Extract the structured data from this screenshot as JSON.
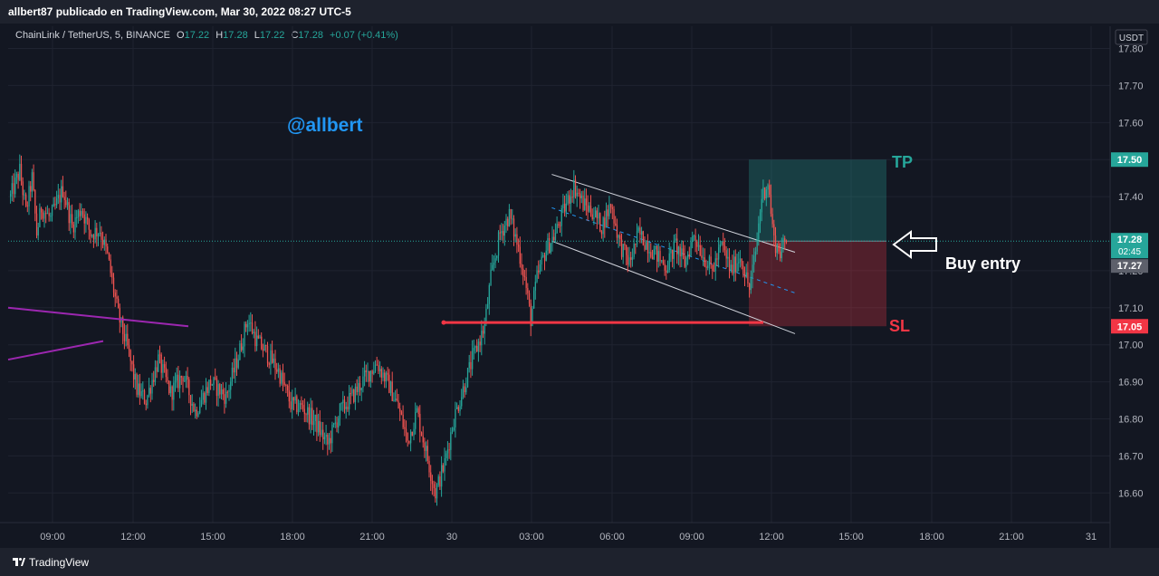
{
  "header": {
    "attribution": "allbert87 publicado en TradingView.com, Mar 30, 2022 08:27 UTC-5"
  },
  "legend": {
    "symbol": "ChainLink / TetherUS, 5, BINANCE",
    "open_label": "O",
    "open": "17.22",
    "high_label": "H",
    "high": "17.28",
    "low_label": "L",
    "low": "17.22",
    "close_label": "C",
    "close": "17.28",
    "change": "+0.07 (+0.41%)"
  },
  "footer": {
    "brand": "TradingView"
  },
  "colors": {
    "up": "#26a69a",
    "down": "#ef5350",
    "background": "#131722",
    "accent_blue": "#2196f3",
    "tp_green": "#26a69a",
    "sl_red": "#f23645"
  },
  "chart_data": {
    "type": "candlestick",
    "currency": "USDT",
    "ylim": [
      16.52,
      17.86
    ],
    "y_ticks": [
      "17.80",
      "17.70",
      "17.60",
      "17.50",
      "17.40",
      "17.20",
      "17.10",
      "17.00",
      "16.90",
      "16.80",
      "16.70",
      "16.60"
    ],
    "x_ticks": [
      "09:00",
      "12:00",
      "15:00",
      "18:00",
      "21:00",
      "30",
      "03:00",
      "06:00",
      "09:00",
      "12:00",
      "15:00",
      "18:00",
      "21:00",
      "31"
    ],
    "price_path": [
      [
        0,
        17.4
      ],
      [
        6,
        17.47
      ],
      [
        10,
        17.36
      ],
      [
        14,
        17.45
      ],
      [
        17,
        17.3
      ],
      [
        20,
        17.37
      ],
      [
        26,
        17.34
      ],
      [
        34,
        17.42
      ],
      [
        40,
        17.32
      ],
      [
        46,
        17.37
      ],
      [
        52,
        17.3
      ],
      [
        58,
        17.31
      ],
      [
        63,
        17.24
      ],
      [
        70,
        17.08
      ],
      [
        76,
        16.99
      ],
      [
        82,
        16.88
      ],
      [
        88,
        16.85
      ],
      [
        96,
        16.96
      ],
      [
        104,
        16.87
      ],
      [
        112,
        16.92
      ],
      [
        120,
        16.82
      ],
      [
        130,
        16.9
      ],
      [
        140,
        16.86
      ],
      [
        148,
        16.97
      ],
      [
        154,
        17.07
      ],
      [
        160,
        17.01
      ],
      [
        166,
        16.98
      ],
      [
        174,
        16.93
      ],
      [
        182,
        16.84
      ],
      [
        190,
        16.83
      ],
      [
        198,
        16.79
      ],
      [
        206,
        16.73
      ],
      [
        214,
        16.82
      ],
      [
        222,
        16.86
      ],
      [
        230,
        16.91
      ],
      [
        238,
        16.95
      ],
      [
        246,
        16.89
      ],
      [
        252,
        16.83
      ],
      [
        258,
        16.74
      ],
      [
        264,
        16.82
      ],
      [
        270,
        16.71
      ],
      [
        276,
        16.6
      ],
      [
        282,
        16.68
      ],
      [
        288,
        16.8
      ],
      [
        294,
        16.88
      ],
      [
        300,
        16.96
      ],
      [
        308,
        17.05
      ],
      [
        312,
        17.18
      ],
      [
        318,
        17.3
      ],
      [
        324,
        17.35
      ],
      [
        330,
        17.26
      ],
      [
        334,
        17.18
      ],
      [
        338,
        17.07
      ],
      [
        342,
        17.18
      ],
      [
        348,
        17.26
      ],
      [
        354,
        17.3
      ],
      [
        360,
        17.37
      ],
      [
        366,
        17.43
      ],
      [
        372,
        17.38
      ],
      [
        378,
        17.36
      ],
      [
        384,
        17.32
      ],
      [
        390,
        17.38
      ],
      [
        396,
        17.27
      ],
      [
        402,
        17.22
      ],
      [
        408,
        17.3
      ],
      [
        414,
        17.27
      ],
      [
        420,
        17.24
      ],
      [
        426,
        17.21
      ],
      [
        432,
        17.27
      ],
      [
        438,
        17.22
      ],
      [
        444,
        17.3
      ],
      [
        450,
        17.24
      ],
      [
        456,
        17.2
      ],
      [
        462,
        17.27
      ],
      [
        468,
        17.2
      ],
      [
        474,
        17.24
      ],
      [
        480,
        17.15
      ],
      [
        484,
        17.25
      ],
      [
        488,
        17.4
      ],
      [
        492,
        17.44
      ],
      [
        496,
        17.28
      ],
      [
        500,
        17.25
      ],
      [
        504,
        17.28
      ]
    ],
    "last_price": "17.28",
    "countdown": "02:45",
    "bid_price": "17.27",
    "trade": {
      "take_profit": 17.5,
      "entry": 17.28,
      "stop_loss": 17.05,
      "tp_label": "TP",
      "sl_label": "SL",
      "tp_tag": "17.50",
      "sl_tag": "17.05"
    },
    "channel": {
      "upper_start": [
        352,
        17.46
      ],
      "upper_end": [
        510,
        17.25
      ],
      "lower_start": [
        352,
        17.28
      ],
      "lower_end": [
        510,
        17.03
      ]
    },
    "annotations": {
      "handle": "@allbert",
      "entry_note": "Buy entry"
    }
  }
}
